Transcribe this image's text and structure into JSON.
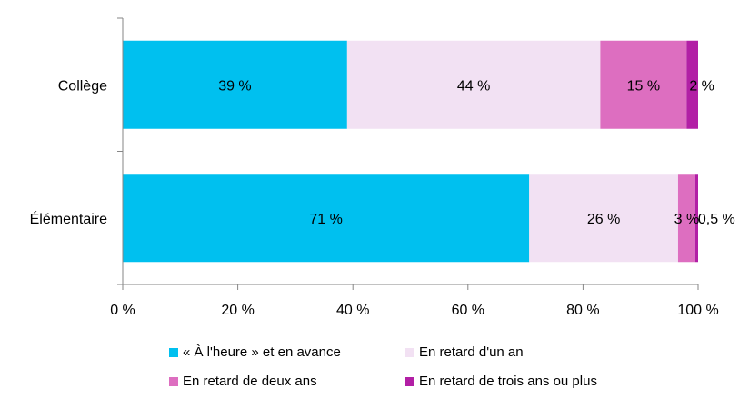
{
  "chart_data": {
    "type": "bar",
    "orientation": "horizontal",
    "stacked": "percent",
    "categories": [
      "Collège",
      "Élémentaire"
    ],
    "series": [
      {
        "name": "« À l'heure » et en avance",
        "color": "#00c0ef",
        "values": [
          39,
          71
        ],
        "labels": [
          "39 %",
          "71 %"
        ]
      },
      {
        "name": "En retard d'un an",
        "color": "#f2e1f3",
        "values": [
          44,
          26
        ],
        "labels": [
          "44 %",
          "26 %"
        ]
      },
      {
        "name": "En retard de deux ans",
        "color": "#dd6ec0",
        "values": [
          15,
          3
        ],
        "labels": [
          "15 %",
          "3 %"
        ]
      },
      {
        "name": "En retard de trois ans ou plus",
        "color": "#b21fa5",
        "values": [
          2,
          0.5
        ],
        "labels": [
          "2 %",
          "0,5 %"
        ]
      }
    ],
    "xlim": [
      0,
      100
    ],
    "xticks": [
      0,
      20,
      40,
      60,
      80,
      100
    ],
    "xtick_labels": [
      "0 %",
      "20 %",
      "40 %",
      "60 %",
      "80 %",
      "100 %"
    ],
    "grid": false,
    "legend": "bottom"
  }
}
